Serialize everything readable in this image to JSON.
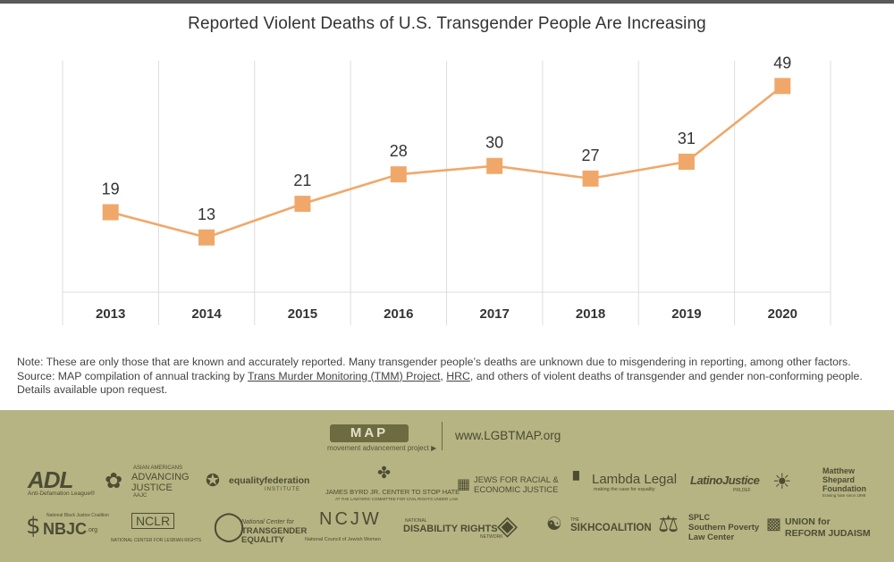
{
  "colors": {
    "line": "#f0a86a",
    "marker": "#f0a86a",
    "grid": "#dddddd",
    "footer_bg": "#b6b483"
  },
  "chart_data": {
    "type": "line",
    "title": "Reported Violent Deaths of U.S. Transgender People Are Increasing",
    "categories": [
      "2013",
      "2014",
      "2015",
      "2016",
      "2017",
      "2018",
      "2019",
      "2020"
    ],
    "values": [
      19,
      13,
      21,
      28,
      30,
      27,
      31,
      49
    ],
    "data_labels": [
      "19",
      "13",
      "21",
      "28",
      "30",
      "27",
      "31",
      "49"
    ],
    "xlabel": "",
    "ylabel": "",
    "ylim": [
      0,
      55
    ],
    "grid": "vertical",
    "legend": "none"
  },
  "notes": {
    "note": "Note: These are only those that are known and accurately reported. Many transgender people’s deaths are unknown due to misgendering in reporting, among other factors.",
    "source_prefix": "Source: MAP compilation of annual tracking by ",
    "source_link1": "Trans Murder Monitoring (TMM) Project",
    "source_sep": ", ",
    "source_link2": "HRC",
    "source_suffix": ", and others of violent deaths of transgender and gender non-conforming people.",
    "details": "Details available upon request."
  },
  "footer": {
    "map_logo": "MAP",
    "map_sub": "movement advancement project",
    "url": "www.LGBTMAP.org",
    "orgs": {
      "adl": "ADL",
      "adl_sub": "Anti-Defamation League®",
      "aajc_top": "ASIAN AMERICANS",
      "aajc_mid": "ADVANCING",
      "aajc_bot": "JUSTICE",
      "aajc_sub": "AAJC",
      "equality_federation": "equalityfederation",
      "equality_federation_sub": "INSTITUTE",
      "jbyrd": "JAMES BYRD JR. CENTER TO STOP HATE",
      "jbyrd_sub": "AT THE LAWYERS' COMMITTEE FOR CIVIL RIGHTS UNDER LAW",
      "jfrej1": "JEWS FOR RACIAL &",
      "jfrej2": "ECONOMIC JUSTICE",
      "lambda": "Lambda Legal",
      "lambda_sub": "making the case for equality",
      "latino": "LatinoJustice",
      "latino_sub": "PRLDEF",
      "mshepard1": "Matthew",
      "mshepard2": "Shepard",
      "mshepard3": "Foundation",
      "mshepard_sub": "Erasing hate since 1998",
      "nbjc_top": "National Black Justice Coalition",
      "nbjc": "NBJC",
      "nbjc_org": ".org",
      "nclr": "NCLR",
      "nclr_sub": "NATIONAL CENTER FOR LESBIAN RIGHTS",
      "ncte1": "National Center for",
      "ncte2": "TRANSGENDER",
      "ncte3": "EQUALITY",
      "ncjw": "NCJW",
      "ncjw_sub": "National Council of Jewish Women",
      "ndrn_top": "NATIONAL",
      "ndrn": "DISABILITY RIGHTS",
      "ndrn_sub": "NETWORK",
      "sikh_top": "THE",
      "sikh": "SIKHCOALITION",
      "splc1": "SPLC",
      "splc2": "Southern Poverty",
      "splc3": "Law Center",
      "urj1": "UNION for",
      "urj2": "REFORM JUDAISM"
    }
  }
}
